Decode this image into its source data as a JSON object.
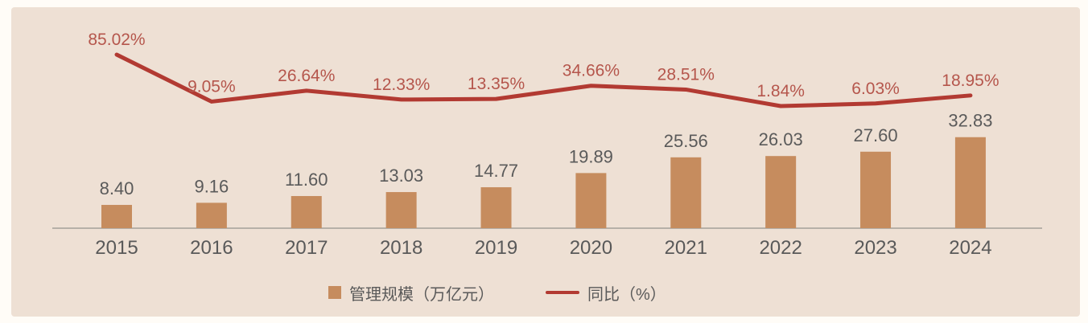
{
  "chart_data": {
    "type": "combo",
    "title": "",
    "xlabel": "",
    "ylabel": "",
    "categories": [
      "2015",
      "2016",
      "2017",
      "2018",
      "2019",
      "2020",
      "2021",
      "2022",
      "2023",
      "2024"
    ],
    "series": [
      {
        "name": "管理规模（万亿元）",
        "type": "bar",
        "values": [
          8.4,
          9.16,
          11.6,
          13.03,
          14.77,
          19.89,
          25.56,
          26.03,
          27.6,
          32.83
        ],
        "labels": [
          "8.40",
          "9.16",
          "11.60",
          "13.03",
          "14.77",
          "19.89",
          "25.56",
          "26.03",
          "27.60",
          "32.83"
        ],
        "color": "#C68C5E"
      },
      {
        "name": "同比（%）",
        "type": "line",
        "values": [
          85.02,
          9.05,
          26.64,
          12.33,
          13.35,
          34.66,
          28.51,
          1.84,
          6.03,
          18.95
        ],
        "labels": [
          "85.02%",
          "9.05%",
          "26.64%",
          "12.33%",
          "13.35%",
          "34.66%",
          "28.51%",
          "1.84%",
          "6.03%",
          "18.95%"
        ],
        "color": "#B23A32"
      }
    ],
    "legend_position": "bottom",
    "gridlines": false,
    "y_axis_visible": false,
    "x_axis_visible": true,
    "colors": {
      "page_background": "#FFFCF7",
      "plot_background": "#EEE0D4",
      "axis_line": "#A39F9A",
      "bar_label_text": "#5A5A5A",
      "x_tick_text": "#595959",
      "line_label_text": "#B5564C",
      "legend_text": "#595959"
    }
  }
}
